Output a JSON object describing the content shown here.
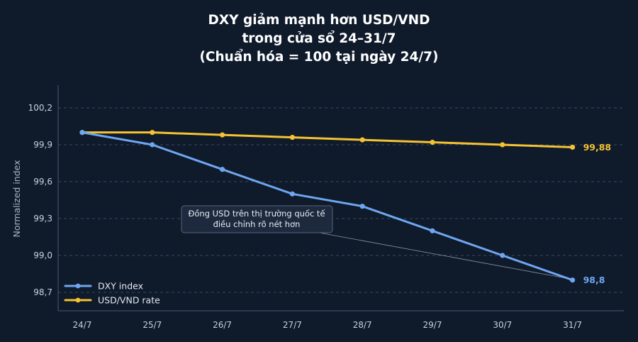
{
  "chart_data": {
    "type": "line",
    "title_lines": [
      "DXY giảm mạnh hơn USD/VND",
      "trong cửa sổ 24–31/7",
      "(Chuẩn hóa = 100 tại ngày 24/7)"
    ],
    "xlabel": "",
    "ylabel": "Normalized index",
    "categories": [
      "24/7",
      "25/7",
      "26/7",
      "27/7",
      "28/7",
      "29/7",
      "30/7",
      "31/7"
    ],
    "ylim": [
      98.55,
      100.35
    ],
    "yticks": [
      "98,7",
      "99,0",
      "99,3",
      "99,6",
      "99,9",
      "100,2"
    ],
    "ytick_values": [
      98.7,
      99.0,
      99.3,
      99.6,
      99.9,
      100.2
    ],
    "grid": true,
    "legend_position": "bottom-left",
    "series": [
      {
        "name": "DXY index",
        "color": "#6ea6f0",
        "values": [
          100.0,
          99.9,
          99.7,
          99.5,
          99.4,
          99.2,
          99.0,
          98.8
        ],
        "end_label": "98,8"
      },
      {
        "name": "USD/VND rate",
        "color": "#f5c232",
        "values": [
          100.0,
          100.0,
          99.98,
          99.96,
          99.94,
          99.92,
          99.9,
          99.88
        ],
        "end_label": "99,88"
      }
    ],
    "annotation": {
      "lines": [
        "Đồng USD trên thị trường quốc tế",
        "điều chỉnh rõ nét hơn"
      ],
      "target_series": 0,
      "target_index": 7
    }
  }
}
